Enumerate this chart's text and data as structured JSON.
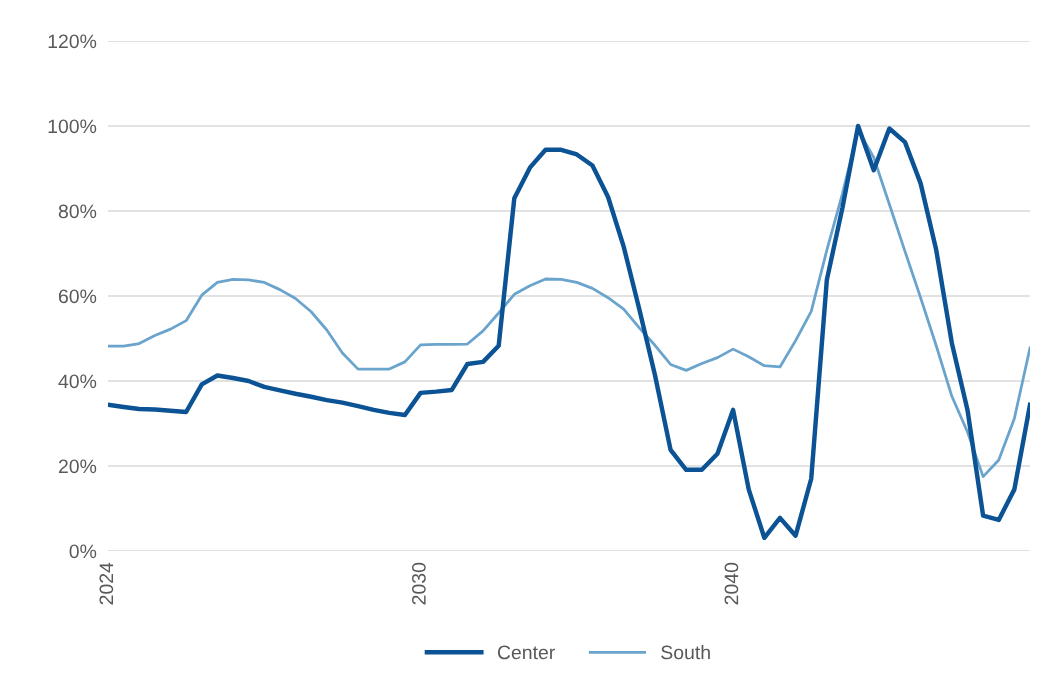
{
  "chart_data": {
    "type": "line",
    "legend": "bottom",
    "grid": "y",
    "ylim": [
      0,
      120
    ],
    "categories": [
      "2024",
      null,
      null,
      null,
      null,
      null,
      null,
      null,
      null,
      null,
      null,
      null,
      null,
      null,
      null,
      null,
      null,
      null,
      null,
      null,
      "2030",
      null,
      null,
      null,
      null,
      null,
      null,
      null,
      null,
      null,
      null,
      null,
      null,
      null,
      null,
      null,
      null,
      null,
      null,
      null,
      "2040",
      null,
      null,
      null,
      null,
      null,
      null,
      null,
      null,
      null,
      null,
      null,
      null,
      null,
      null,
      null,
      null,
      null,
      null,
      null
    ],
    "yticks": [
      {
        "value": 0,
        "label": "0%"
      },
      {
        "value": 20,
        "label": "20%"
      },
      {
        "value": 40,
        "label": "40%"
      },
      {
        "value": 60,
        "label": "60%"
      },
      {
        "value": 80,
        "label": "80%"
      },
      {
        "value": 100,
        "label": "100%"
      },
      {
        "value": 120,
        "label": "120%"
      }
    ],
    "series": [
      {
        "name": "Center",
        "color": "#0b5394",
        "values": [
          34.4,
          33.9,
          33.4,
          33.3,
          33.0,
          32.7,
          39.2,
          41.3,
          40.7,
          40.0,
          38.6,
          37.8,
          37.0,
          36.3,
          35.5,
          34.9,
          34.1,
          33.2,
          32.5,
          32.0,
          37.2,
          37.5,
          37.9,
          44.0,
          44.5,
          48.3,
          83.0,
          90.2,
          94.4,
          94.4,
          93.3,
          90.7,
          83.3,
          71.6,
          56.9,
          41.4,
          23.8,
          19.1,
          19.1,
          22.9,
          33.2,
          14.5,
          3.1,
          7.8,
          3.6,
          17.0,
          63.8,
          80.8,
          100,
          89.6,
          99.4,
          96.2,
          86.5,
          70.8,
          48.9,
          33.2,
          8.3,
          7.3,
          14.5,
          34.4
        ]
      },
      {
        "name": "South",
        "color": "#6aa4cd",
        "values": [
          48.2,
          48.2,
          48.8,
          50.7,
          52.2,
          54.2,
          60.2,
          63.2,
          63.9,
          63.8,
          63.2,
          61.5,
          59.4,
          56.3,
          52.0,
          46.6,
          42.8,
          42.8,
          42.8,
          44.5,
          48.5,
          48.6,
          48.6,
          48.7,
          51.8,
          56.0,
          60.4,
          62.4,
          64.0,
          63.9,
          63.2,
          61.8,
          59.6,
          56.9,
          52.5,
          48.4,
          43.9,
          42.5,
          44.1,
          45.5,
          47.5,
          45.7,
          43.6,
          43.3,
          49.5,
          56.4,
          70.8,
          84.1,
          99.1,
          92.6,
          81.6,
          70.5,
          59.6,
          48.3,
          36.4,
          28.0,
          17.5,
          21.4,
          31.2,
          47.8
        ]
      }
    ]
  }
}
